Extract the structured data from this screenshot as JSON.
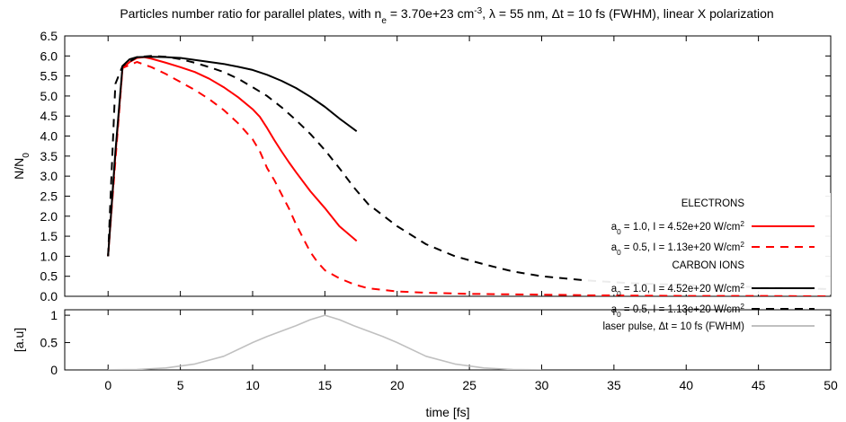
{
  "chart_data": [
    {
      "type": "line",
      "title": "Particles number ratio for parallel plates, with n_e = 3.70e+23 cm^-3, λ = 55 nm, Δt = 10 fs (FWHM), linear X polarization",
      "title_parts": [
        {
          "t": "Particles number ratio for parallel plates, with n"
        },
        {
          "t": "e",
          "sub": true
        },
        {
          "t": " = 3.70e+23 cm"
        },
        {
          "t": "-3",
          "sup": true
        },
        {
          "t": ", λ = 55 nm, Δt = 10 fs (FWHM), linear X polarization"
        }
      ],
      "xlabel": "time [fs]",
      "ylabel": "N/N0",
      "ylabel_parts": [
        {
          "t": "N/N"
        },
        {
          "t": "0",
          "sub": true
        }
      ],
      "xlim": [
        -3,
        50
      ],
      "ylim": [
        0,
        6.5
      ],
      "xticks": [
        0,
        5,
        10,
        15,
        20,
        25,
        30,
        35,
        40,
        45,
        50
      ],
      "yticks": [
        0.0,
        0.5,
        1.0,
        1.5,
        2.0,
        2.5,
        3.0,
        3.5,
        4.0,
        4.5,
        5.0,
        5.5,
        6.0,
        6.5
      ],
      "grid": false,
      "legend_position": "bottom-right",
      "legend_groups": [
        "ELECTRONS",
        "CARBON IONS"
      ],
      "series": [
        {
          "name": "a0 = 1.0, I = 4.52e+20 W/cm2",
          "label_parts": [
            {
              "t": "a"
            },
            {
              "t": "0",
              "sub": true
            },
            {
              "t": " = 1.0, I = 4.52e+20 W/cm"
            },
            {
              "t": "2",
              "sup": true
            }
          ],
          "group": "ELECTRONS",
          "color": "#ff0000",
          "dash": "solid",
          "x": [
            0,
            0.5,
            1.0,
            1.5,
            2.0,
            2.5,
            3.0,
            4.0,
            5.0,
            6.0,
            7.0,
            8.0,
            9.0,
            10.0,
            10.5,
            11.0,
            11.5,
            12.0,
            12.5,
            13.0,
            14.0,
            15.0,
            16.0,
            17.2
          ],
          "y": [
            1.0,
            3.5,
            5.7,
            5.85,
            5.95,
            5.97,
            5.93,
            5.83,
            5.72,
            5.6,
            5.43,
            5.22,
            4.97,
            4.67,
            4.48,
            4.2,
            3.9,
            3.62,
            3.35,
            3.1,
            2.62,
            2.2,
            1.75,
            1.38
          ]
        },
        {
          "name": "a0 = 0.5, I = 1.13e+20 W/cm2",
          "label_parts": [
            {
              "t": "a"
            },
            {
              "t": "0",
              "sub": true
            },
            {
              "t": " = 0.5, I = 1.13e+20 W/cm"
            },
            {
              "t": "2",
              "sup": true
            }
          ],
          "group": "ELECTRONS",
          "color": "#ff0000",
          "dash": "dashed",
          "x": [
            0,
            1.0,
            2.0,
            3.0,
            4.0,
            5.0,
            6.0,
            7.0,
            8.0,
            9.0,
            10.0,
            10.5,
            11.0,
            11.5,
            12.0,
            12.5,
            13.0,
            13.5,
            14.0,
            14.5,
            15.0,
            16.0,
            17.0,
            18.0,
            20.0,
            22.0,
            25.0,
            30.0,
            35.0,
            40.0,
            45.0,
            50.0
          ],
          "y": [
            1.0,
            5.7,
            5.85,
            5.72,
            5.55,
            5.35,
            5.15,
            4.92,
            4.65,
            4.32,
            3.92,
            3.62,
            3.2,
            2.9,
            2.55,
            2.2,
            1.8,
            1.45,
            1.1,
            0.85,
            0.65,
            0.45,
            0.3,
            0.2,
            0.12,
            0.09,
            0.06,
            0.04,
            0.02,
            0.01,
            0.01,
            0.0
          ]
        },
        {
          "name": "a0 = 1.0, I = 4.52e+20 W/cm2",
          "label_parts": [
            {
              "t": "a"
            },
            {
              "t": "0",
              "sub": true
            },
            {
              "t": " = 1.0, I = 4.52e+20 W/cm"
            },
            {
              "t": "2",
              "sup": true
            }
          ],
          "group": "CARBON IONS",
          "color": "#000000",
          "dash": "solid",
          "x": [
            0,
            0.5,
            1.0,
            1.5,
            2.0,
            3.0,
            4.0,
            5.0,
            6.0,
            7.0,
            8.0,
            9.0,
            10.0,
            11.0,
            12.0,
            13.0,
            14.0,
            15.0,
            16.0,
            17.2
          ],
          "y": [
            1.0,
            3.6,
            5.75,
            5.92,
            5.97,
            5.98,
            5.97,
            5.95,
            5.9,
            5.85,
            5.8,
            5.73,
            5.65,
            5.53,
            5.38,
            5.2,
            4.98,
            4.73,
            4.44,
            4.12
          ]
        },
        {
          "name": "a0 = 0.5, I = 1.13e+20 W/cm2",
          "label_parts": [
            {
              "t": "a"
            },
            {
              "t": "0",
              "sub": true
            },
            {
              "t": " = 0.5, I = 1.13e+20 W/cm"
            },
            {
              "t": "2",
              "sup": true
            }
          ],
          "group": "CARBON IONS",
          "color": "#000000",
          "dash": "dashed",
          "x": [
            0,
            0.5,
            1.0,
            2.0,
            3.0,
            4.0,
            5.0,
            6.0,
            7.0,
            8.0,
            9.0,
            10.0,
            11.0,
            12.0,
            13.0,
            14.0,
            15.0,
            16.0,
            17.0,
            18.0,
            20.0,
            22.0,
            24.0,
            26.0,
            28.0,
            30.0,
            33.0,
            36.0,
            40.0,
            45.0,
            50.0
          ],
          "y": [
            1.0,
            5.3,
            5.75,
            5.97,
            6.0,
            5.98,
            5.92,
            5.83,
            5.72,
            5.6,
            5.43,
            5.22,
            5.0,
            4.72,
            4.4,
            4.05,
            3.65,
            3.2,
            2.72,
            2.3,
            1.75,
            1.3,
            1.0,
            0.8,
            0.62,
            0.5,
            0.4,
            0.33,
            0.28,
            0.23,
            0.18
          ]
        }
      ]
    },
    {
      "type": "area",
      "xlabel": "time [fs]",
      "ylabel": "[a.u]",
      "xlim": [
        -3,
        50
      ],
      "ylim": [
        0,
        1.1
      ],
      "xticks": [
        0,
        5,
        10,
        15,
        20,
        25,
        30,
        35,
        40,
        45,
        50
      ],
      "yticks": [
        0,
        0.5,
        1
      ],
      "grid": false,
      "legend_position": "top-right",
      "series": [
        {
          "name": "laser pulse, Δt = 10 fs (FWHM)",
          "color": "#c0c0c0",
          "dash": "solid",
          "x": [
            0,
            2,
            4,
            6,
            8,
            10,
            11,
            12,
            13,
            14,
            15,
            16,
            17,
            18,
            19,
            20,
            22,
            24,
            26,
            28,
            30
          ],
          "y": [
            0.002,
            0.009,
            0.036,
            0.108,
            0.25,
            0.5,
            0.61,
            0.71,
            0.81,
            0.92,
            1.0,
            0.92,
            0.81,
            0.71,
            0.61,
            0.5,
            0.25,
            0.108,
            0.036,
            0.009,
            0.002
          ]
        }
      ]
    }
  ]
}
